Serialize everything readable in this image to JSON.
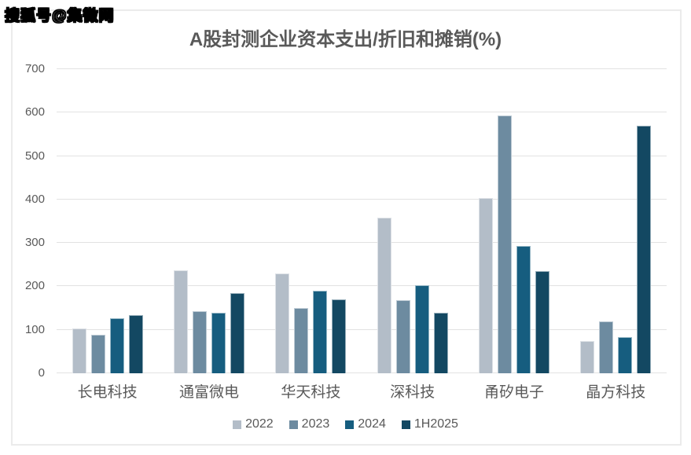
{
  "watermark": "搜狐号@集微网",
  "chart_data": {
    "type": "bar",
    "title": "A股封测企业资本支出/折旧和摊销(%)",
    "categories": [
      "长电科技",
      "通富微电",
      "华天科技",
      "深科技",
      "甬矽电子",
      "晶方科技"
    ],
    "series": [
      {
        "name": "2022",
        "color": "#B3BDC8",
        "values": [
          103,
          237,
          230,
          358,
          404,
          75
        ]
      },
      {
        "name": "2023",
        "color": "#6D8BA0",
        "values": [
          88,
          143,
          151,
          169,
          593,
          119
        ]
      },
      {
        "name": "2024",
        "color": "#165D7F",
        "values": [
          126,
          140,
          190,
          203,
          293,
          84
        ]
      },
      {
        "name": "1H2025",
        "color": "#134862",
        "values": [
          133,
          185,
          170,
          140,
          235,
          570
        ]
      }
    ],
    "ylim": [
      0,
      700
    ],
    "yticks": [
      0,
      100,
      200,
      300,
      400,
      500,
      600,
      700
    ],
    "xlabel": "",
    "ylabel": "",
    "grid": "horizontal",
    "legend_position": "bottom"
  },
  "colors": {
    "title_text": "#595959",
    "axis_text": "#595959",
    "gridline": "#E2E2E2",
    "chart_border": "#EBEBEB",
    "background": "#FFFFFF"
  }
}
